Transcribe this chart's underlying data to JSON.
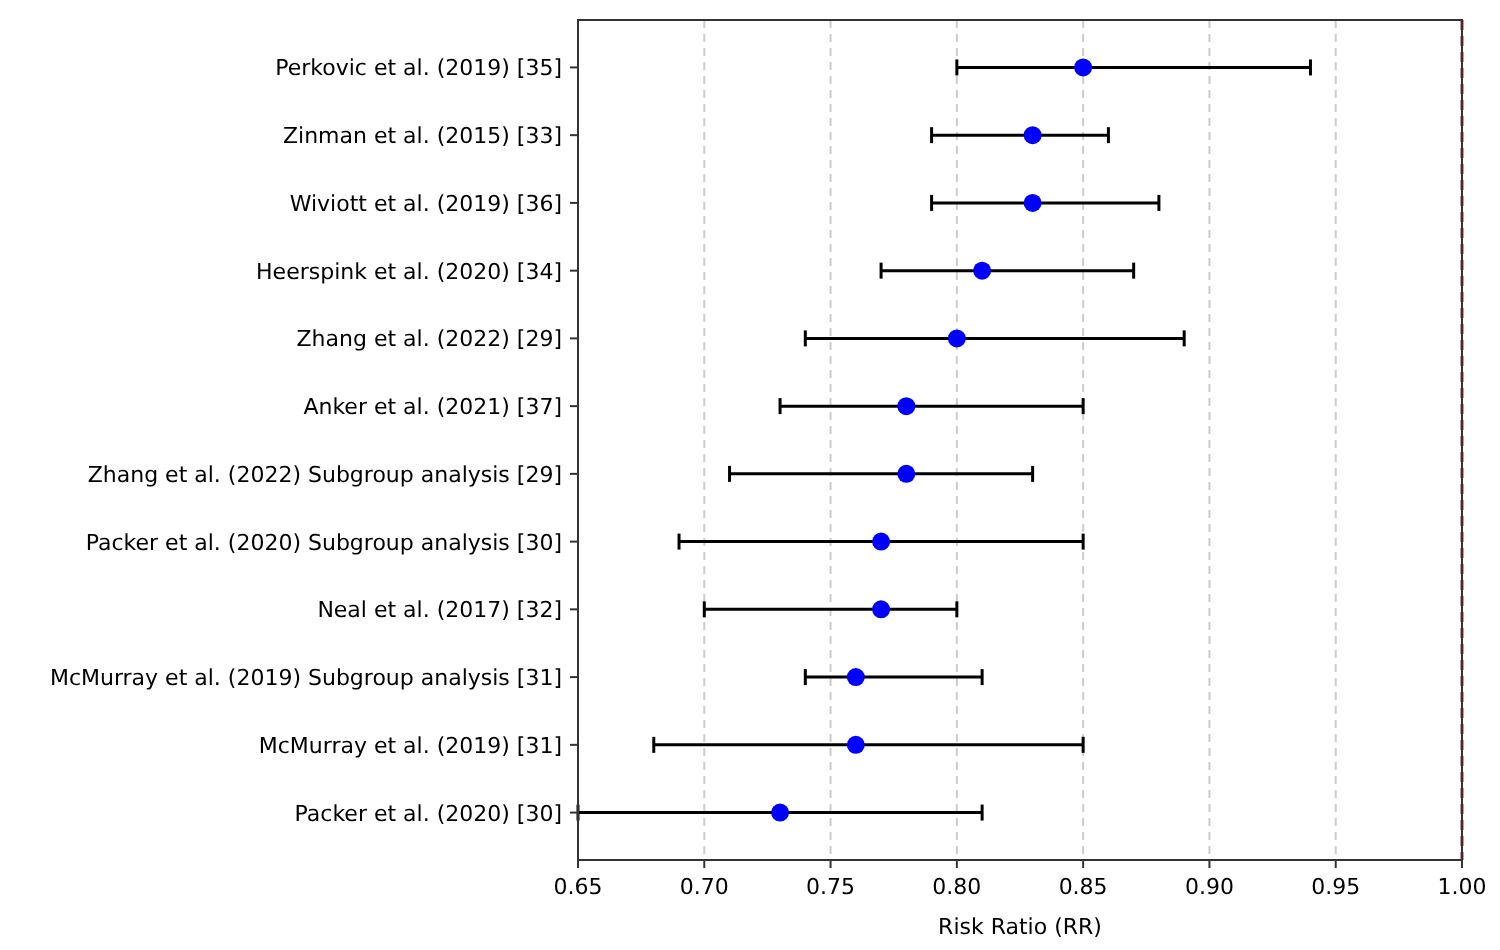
{
  "chart_data": {
    "type": "scatter",
    "orientation": "horizontal",
    "xlabel": "Risk Ratio (RR)",
    "categories": [
      "Perkovic et al. (2019) [35]",
      "Zinman et al. (2015) [33]",
      "Wiviott et al. (2019) [36]",
      "Heerspink et al. (2020) [34]",
      "Zhang et al. (2022) [29]",
      "Anker et al. (2021) [37]",
      "Zhang et al. (2022) Subgroup analysis [29]",
      "Packer et al. (2020) Subgroup analysis [30]",
      "Neal et al. (2017) [32]",
      "McMurray et al. (2019) Subgroup analysis [31]",
      "McMurray et al. (2019) [31]",
      "Packer et al. (2020) [30]"
    ],
    "series": [
      {
        "color": "#0000ff",
        "values": [
          0.85,
          0.83,
          0.83,
          0.81,
          0.8,
          0.78,
          0.78,
          0.77,
          0.77,
          0.76,
          0.76,
          0.73
        ],
        "errors": [
          [
            0.8,
            0.94
          ],
          [
            0.79,
            0.86
          ],
          [
            0.79,
            0.88
          ],
          [
            0.77,
            0.87
          ],
          [
            0.74,
            0.89
          ],
          [
            0.73,
            0.85
          ],
          [
            0.71,
            0.83
          ],
          [
            0.69,
            0.85
          ],
          [
            0.7,
            0.8
          ],
          [
            0.74,
            0.81
          ],
          [
            0.68,
            0.85
          ],
          [
            0.65,
            0.81
          ]
        ]
      }
    ],
    "marker": "circle",
    "xlim": [
      0.65,
      1.0
    ],
    "xticks": [
      {
        "value": 0.65,
        "label": "0.65"
      },
      {
        "value": 0.7,
        "label": "0.70"
      },
      {
        "value": 0.75,
        "label": "0.75"
      },
      {
        "value": 0.8,
        "label": "0.80"
      },
      {
        "value": 0.85,
        "label": "0.85"
      },
      {
        "value": 0.9,
        "label": "0.90"
      },
      {
        "value": 0.95,
        "label": "0.95"
      },
      {
        "value": 1.0,
        "label": "1.00"
      }
    ],
    "grid": "x",
    "ref_lines": [
      {
        "axis": "x",
        "value": 1.0,
        "color": "#b22222",
        "line_style": "dashed"
      }
    ]
  }
}
